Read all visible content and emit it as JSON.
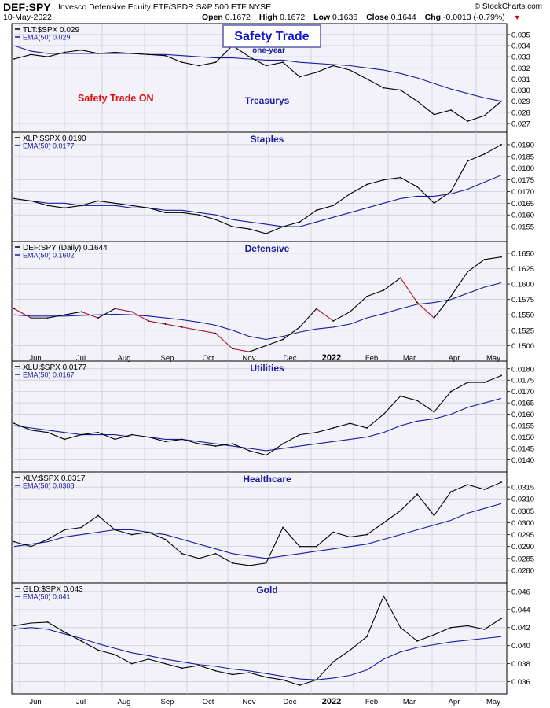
{
  "header": {
    "symbol": "DEF:SPY",
    "description": "Invesco Defensive Equity ETF/SPDR S&P 500 ETF  NYSE",
    "date": "10-May-2022",
    "open_label": "Open",
    "open": "0.1672",
    "high_label": "High",
    "high": "0.1672",
    "low_label": "Low",
    "low": "0.1636",
    "close_label": "Close",
    "close": "0.1644",
    "chg_label": "Chg",
    "chg": "-0.0013 (-0.79%)",
    "chg_arrow": "▼",
    "watermark": "© StockCharts.com"
  },
  "overlays": {
    "title": "Safety Trade",
    "subtitle": "one-year",
    "status": "Safety Trade ON"
  },
  "colors": {
    "price": "#000000",
    "ema": "#1a1aa0",
    "down": "#b0102a",
    "panel_bg": "#f2f2f8",
    "grid": "#c8c8d8",
    "title": "#1a1aa0",
    "status": "#dd1111"
  },
  "x_axis": {
    "months": [
      "Jun",
      "Jul",
      "Aug",
      "Sep",
      "Oct",
      "Nov",
      "Dec",
      "2022",
      "Feb",
      "Mar",
      "Apr",
      "May"
    ]
  },
  "chart_data": [
    {
      "type": "line",
      "title": "Treasurys",
      "series": [
        {
          "name": "TLT:$SPX",
          "label": "TLT:$SPX 0.029",
          "values": [
            0.0328,
            0.0332,
            0.033,
            0.0334,
            0.0336,
            0.0333,
            0.0334,
            0.0333,
            0.0332,
            0.0331,
            0.0325,
            0.0322,
            0.0325,
            0.034,
            0.033,
            0.0322,
            0.0325,
            0.0312,
            0.0316,
            0.0322,
            0.0318,
            0.031,
            0.0302,
            0.03,
            0.029,
            0.0278,
            0.0282,
            0.0272,
            0.0277,
            0.029
          ]
        },
        {
          "name": "EMA(50)",
          "label": "EMA(50) 0.029",
          "values": [
            0.034,
            0.0335,
            0.0333,
            0.0333,
            0.0333,
            0.0333,
            0.0333,
            0.0333,
            0.0332,
            0.0332,
            0.0331,
            0.033,
            0.0329,
            0.0329,
            0.0328,
            0.0327,
            0.0327,
            0.0325,
            0.0324,
            0.0323,
            0.0322,
            0.032,
            0.0318,
            0.0315,
            0.0311,
            0.0306,
            0.0301,
            0.0297,
            0.0293,
            0.029
          ]
        }
      ],
      "y_ticks": [
        "0.027",
        "0.028",
        "0.029",
        "0.030",
        "0.031",
        "0.032",
        "0.033",
        "0.034",
        "0.035"
      ],
      "ylim": [
        0.0265,
        0.0357
      ]
    },
    {
      "type": "line",
      "title": "Staples",
      "series": [
        {
          "name": "XLP:$SPX",
          "label": "XLP:$SPX 0.0190",
          "values": [
            0.0167,
            0.0166,
            0.0164,
            0.0163,
            0.0164,
            0.0166,
            0.0165,
            0.0164,
            0.0163,
            0.0161,
            0.0161,
            0.016,
            0.0158,
            0.0155,
            0.0154,
            0.0152,
            0.0155,
            0.0157,
            0.0162,
            0.0164,
            0.0169,
            0.0173,
            0.0175,
            0.0176,
            0.0172,
            0.0165,
            0.017,
            0.0183,
            0.0186,
            0.019
          ]
        },
        {
          "name": "EMA(50)",
          "label": "EMA(50) 0.0177",
          "values": [
            0.0166,
            0.0166,
            0.0165,
            0.0165,
            0.0164,
            0.0164,
            0.0164,
            0.0163,
            0.0163,
            0.0162,
            0.0162,
            0.0161,
            0.016,
            0.0158,
            0.0157,
            0.0156,
            0.0155,
            0.0155,
            0.0157,
            0.0159,
            0.0161,
            0.0163,
            0.0165,
            0.0167,
            0.0168,
            0.0168,
            0.0169,
            0.0171,
            0.0174,
            0.0177
          ]
        }
      ],
      "y_ticks": [
        "0.0155",
        "0.0160",
        "0.0165",
        "0.0170",
        "0.0175",
        "0.0180",
        "0.0185",
        "0.0190"
      ],
      "ylim": [
        0.015,
        0.0194
      ]
    },
    {
      "type": "line",
      "title": "Defensive",
      "series": [
        {
          "name": "DEF:SPY (Daily)",
          "label": "DEF:SPY (Daily) 0.1644",
          "values": [
            0.156,
            0.1545,
            0.1545,
            0.155,
            0.1555,
            0.1545,
            0.156,
            0.1555,
            0.154,
            0.1535,
            0.153,
            0.1525,
            0.152,
            0.1495,
            0.149,
            0.15,
            0.151,
            0.153,
            0.156,
            0.154,
            0.1555,
            0.158,
            0.159,
            0.161,
            0.157,
            0.1545,
            0.158,
            0.162,
            0.164,
            0.1644
          ]
        },
        {
          "name": "EMA(50)",
          "label": "EMA(50) 0.1602",
          "values": [
            0.155,
            0.1548,
            0.1548,
            0.1548,
            0.1549,
            0.155,
            0.1551,
            0.155,
            0.1548,
            0.1545,
            0.1542,
            0.1538,
            0.1533,
            0.1525,
            0.1515,
            0.151,
            0.1515,
            0.1522,
            0.1527,
            0.153,
            0.1535,
            0.1545,
            0.1552,
            0.156,
            0.1567,
            0.157,
            0.1575,
            0.1585,
            0.1595,
            0.1602
          ]
        }
      ],
      "y_ticks": [
        "0.1500",
        "0.1525",
        "0.1550",
        "0.1575",
        "0.1600",
        "0.1625",
        "0.1650"
      ],
      "ylim": [
        0.148,
        0.1664
      ]
    },
    {
      "type": "line",
      "title": "Utilities",
      "series": [
        {
          "name": "XLU:$SPX",
          "label": "XLU:$SPX 0.0177",
          "values": [
            0.0156,
            0.0153,
            0.0152,
            0.0149,
            0.0151,
            0.0152,
            0.0149,
            0.0151,
            0.015,
            0.0148,
            0.0149,
            0.0147,
            0.0146,
            0.0147,
            0.0144,
            0.0142,
            0.0147,
            0.0151,
            0.0152,
            0.0154,
            0.0156,
            0.0154,
            0.016,
            0.0168,
            0.0166,
            0.0161,
            0.017,
            0.0174,
            0.0174,
            0.0177
          ]
        },
        {
          "name": "EMA(50)",
          "label": "EMA(50) 0.0167",
          "values": [
            0.0155,
            0.0154,
            0.0153,
            0.0152,
            0.0151,
            0.0151,
            0.0151,
            0.015,
            0.015,
            0.0149,
            0.0149,
            0.0148,
            0.0147,
            0.0146,
            0.0145,
            0.0144,
            0.0145,
            0.0146,
            0.0147,
            0.0148,
            0.0149,
            0.015,
            0.0152,
            0.0155,
            0.0157,
            0.0158,
            0.016,
            0.0163,
            0.0165,
            0.0167
          ]
        }
      ],
      "y_ticks": [
        "0.0140",
        "0.0145",
        "0.0150",
        "0.0155",
        "0.0160",
        "0.0165",
        "0.0170",
        "0.0175",
        "0.0180"
      ],
      "ylim": [
        0.0136,
        0.0182
      ]
    },
    {
      "type": "line",
      "title": "Healthcare",
      "series": [
        {
          "name": "XLV:$SPX",
          "label": "XLV:$SPX 0.0317",
          "values": [
            0.0292,
            0.029,
            0.0293,
            0.0297,
            0.0298,
            0.0303,
            0.0297,
            0.0295,
            0.0296,
            0.0293,
            0.0287,
            0.0285,
            0.0287,
            0.0283,
            0.0282,
            0.0283,
            0.0298,
            0.029,
            0.029,
            0.0296,
            0.0294,
            0.0295,
            0.03,
            0.0305,
            0.0312,
            0.0303,
            0.0313,
            0.0316,
            0.0314,
            0.0317
          ]
        },
        {
          "name": "EMA(50)",
          "label": "EMA(50) 0.0308",
          "values": [
            0.029,
            0.0291,
            0.0292,
            0.0294,
            0.0295,
            0.0296,
            0.0297,
            0.0297,
            0.0296,
            0.0295,
            0.0293,
            0.0291,
            0.0289,
            0.0287,
            0.0286,
            0.0285,
            0.0286,
            0.0287,
            0.0288,
            0.0289,
            0.029,
            0.0291,
            0.0293,
            0.0295,
            0.0297,
            0.0299,
            0.0301,
            0.0304,
            0.0306,
            0.0308
          ]
        }
      ],
      "y_ticks": [
        "0.0280",
        "0.0285",
        "0.0290",
        "0.0295",
        "0.0300",
        "0.0305",
        "0.0310",
        "0.0315"
      ],
      "ylim": [
        0.0276,
        0.032
      ]
    },
    {
      "type": "line",
      "title": "Gold",
      "series": [
        {
          "name": "GLD:$SPX",
          "label": "GLD:$SPX 0.043",
          "values": [
            0.0422,
            0.0425,
            0.0426,
            0.0415,
            0.0405,
            0.0395,
            0.039,
            0.038,
            0.0385,
            0.038,
            0.0375,
            0.0378,
            0.0372,
            0.0368,
            0.037,
            0.0365,
            0.0362,
            0.0356,
            0.0362,
            0.0382,
            0.0395,
            0.041,
            0.0455,
            0.042,
            0.0405,
            0.0412,
            0.042,
            0.0422,
            0.0418,
            0.043
          ]
        },
        {
          "name": "EMA(50)",
          "label": "EMA(50) 0.041",
          "values": [
            0.0418,
            0.042,
            0.0418,
            0.0413,
            0.0408,
            0.0402,
            0.0397,
            0.0392,
            0.0389,
            0.0385,
            0.0382,
            0.0379,
            0.0377,
            0.0374,
            0.0372,
            0.0369,
            0.0366,
            0.0363,
            0.0362,
            0.0364,
            0.0367,
            0.0373,
            0.0385,
            0.0393,
            0.0398,
            0.0401,
            0.0404,
            0.0406,
            0.0408,
            0.041
          ]
        }
      ],
      "y_ticks": [
        "0.036",
        "0.038",
        "0.040",
        "0.042",
        "0.044",
        "0.046"
      ],
      "ylim": [
        0.035,
        0.0466
      ]
    }
  ]
}
